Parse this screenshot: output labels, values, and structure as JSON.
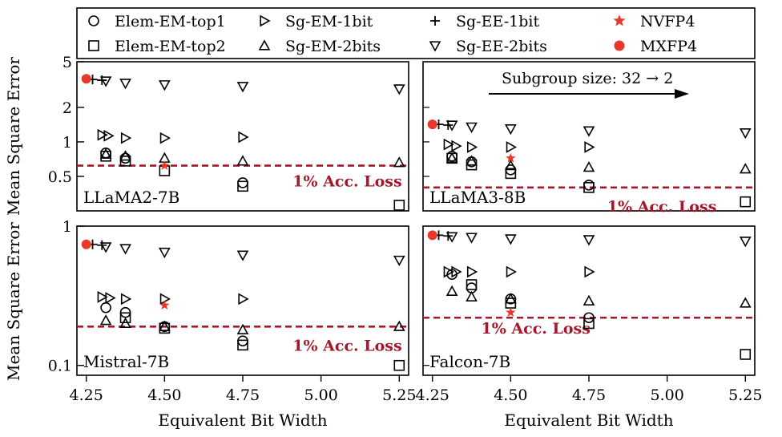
{
  "legend": [
    {
      "label": "Elem-EM-top1",
      "marker": "circle-open"
    },
    {
      "label": "Elem-EM-top2",
      "marker": "square-open"
    },
    {
      "label": "Sg-EM-1bit",
      "marker": "triangle-right-open"
    },
    {
      "label": "Sg-EM-2bits",
      "marker": "triangle-up-open"
    },
    {
      "label": "Sg-EE-1bit",
      "marker": "plus"
    },
    {
      "label": "Sg-EE-2bits",
      "marker": "triangle-down-open"
    },
    {
      "label": "NVFP4",
      "marker": "star-filled"
    },
    {
      "label": "MXFP4",
      "marker": "circle-filled"
    }
  ],
  "colors": {
    "accent_red": "#e8382a",
    "threshold_line": "#a3182a"
  },
  "axis_common": {
    "xlabel": "Equivalent Bit Width",
    "ylabel": "Mean Square Error",
    "xticks": [
      "4.25",
      "4.50",
      "4.75",
      "5.00",
      "5.25"
    ],
    "threshold_label": "1% Acc. Loss"
  },
  "annotation": {
    "subgroup_text": "Subgroup size: 32 → 2"
  },
  "chart_data": [
    {
      "type": "scatter",
      "title": "LLaMA2-7B",
      "yscale": "log",
      "xlim": [
        4.22,
        5.28
      ],
      "ylim": [
        0.25,
        5
      ],
      "yticks": [
        {
          "v": 0.5,
          "label": "0.5"
        },
        {
          "v": 1,
          "label": "1"
        },
        {
          "v": 2,
          "label": "2"
        },
        {
          "v": 5,
          "label": "5"
        }
      ],
      "threshold": 0.62,
      "series": [
        {
          "name": "Elem-EM-top1",
          "points": [
            [
              4.3125,
              0.8
            ],
            [
              4.375,
              0.72
            ],
            [
              4.75,
              0.44
            ]
          ]
        },
        {
          "name": "Elem-EM-top2",
          "points": [
            [
              4.3125,
              0.75
            ],
            [
              4.375,
              0.68
            ],
            [
              4.5,
              0.56
            ],
            [
              4.75,
              0.41
            ],
            [
              5.25,
              0.28
            ]
          ]
        },
        {
          "name": "Sg-EM-1bit",
          "points": [
            [
              4.3,
              1.15
            ],
            [
              4.32,
              1.13
            ],
            [
              4.375,
              1.08
            ],
            [
              4.5,
              1.08
            ],
            [
              4.75,
              1.1
            ]
          ]
        },
        {
          "name": "Sg-EM-2bits",
          "points": [
            [
              4.3125,
              0.78
            ],
            [
              4.375,
              0.75
            ],
            [
              4.5,
              0.72
            ],
            [
              4.75,
              0.68
            ],
            [
              5.25,
              0.66
            ]
          ]
        },
        {
          "name": "Sg-EE-1bit",
          "points": [
            [
              4.27,
              3.5
            ],
            [
              4.3,
              3.45
            ]
          ]
        },
        {
          "name": "Sg-EE-2bits",
          "points": [
            [
              4.3125,
              3.4
            ],
            [
              4.375,
              3.25
            ],
            [
              4.5,
              3.15
            ],
            [
              4.75,
              3.05
            ],
            [
              5.25,
              2.9
            ]
          ]
        },
        {
          "name": "NVFP4",
          "points": [
            [
              4.5,
              0.62
            ]
          ]
        },
        {
          "name": "MXFP4",
          "points": [
            [
              4.25,
              3.55
            ]
          ]
        }
      ]
    },
    {
      "type": "scatter",
      "title": "LLaMA3-8B",
      "yscale": "log",
      "xlim": [
        4.22,
        5.28
      ],
      "ylim": [
        0.25,
        5
      ],
      "yticks": [],
      "threshold": 0.4,
      "series": [
        {
          "name": "Elem-EM-top1",
          "points": [
            [
              4.3125,
              0.75
            ],
            [
              4.375,
              0.67
            ],
            [
              4.5,
              0.57
            ],
            [
              4.75,
              0.42
            ]
          ]
        },
        {
          "name": "Elem-EM-top2",
          "points": [
            [
              4.3125,
              0.72
            ],
            [
              4.375,
              0.63
            ],
            [
              4.5,
              0.53
            ],
            [
              4.75,
              0.4
            ],
            [
              5.25,
              0.3
            ]
          ]
        },
        {
          "name": "Sg-EM-1bit",
          "points": [
            [
              4.3,
              0.95
            ],
            [
              4.325,
              0.92
            ],
            [
              4.375,
              0.9
            ],
            [
              4.5,
              0.9
            ],
            [
              4.75,
              0.9
            ]
          ]
        },
        {
          "name": "Sg-EM-2bits",
          "points": [
            [
              4.3125,
              0.72
            ],
            [
              4.375,
              0.68
            ],
            [
              4.5,
              0.62
            ],
            [
              4.75,
              0.6
            ],
            [
              5.25,
              0.58
            ]
          ]
        },
        {
          "name": "Sg-EE-1bit",
          "points": [
            [
              4.27,
              1.42
            ],
            [
              4.3,
              1.4
            ]
          ]
        },
        {
          "name": "Sg-EE-2bits",
          "points": [
            [
              4.3125,
              1.4
            ],
            [
              4.375,
              1.35
            ],
            [
              4.5,
              1.3
            ],
            [
              4.75,
              1.25
            ],
            [
              5.25,
              1.2
            ]
          ]
        },
        {
          "name": "NVFP4",
          "points": [
            [
              4.5,
              0.72
            ]
          ]
        },
        {
          "name": "MXFP4",
          "points": [
            [
              4.25,
              1.42
            ]
          ]
        }
      ]
    },
    {
      "type": "scatter",
      "title": "Mistral-7B",
      "yscale": "log",
      "xlim": [
        4.22,
        5.28
      ],
      "ylim": [
        0.085,
        1
      ],
      "yticks": [
        {
          "v": 0.1,
          "label": "0.1"
        },
        {
          "v": 1,
          "label": "1"
        }
      ],
      "threshold": 0.19,
      "series": [
        {
          "name": "Elem-EM-top1",
          "points": [
            [
              4.3125,
              0.26
            ],
            [
              4.375,
              0.24
            ],
            [
              4.5,
              0.19
            ],
            [
              4.75,
              0.15
            ]
          ]
        },
        {
          "name": "Elem-EM-top2",
          "points": [
            [
              4.375,
              0.22
            ],
            [
              4.5,
              0.185
            ],
            [
              4.75,
              0.14
            ],
            [
              5.25,
              0.1
            ]
          ]
        },
        {
          "name": "Sg-EM-1bit",
          "points": [
            [
              4.3,
              0.31
            ],
            [
              4.325,
              0.305
            ],
            [
              4.375,
              0.3
            ],
            [
              4.5,
              0.3
            ],
            [
              4.75,
              0.3
            ]
          ]
        },
        {
          "name": "Sg-EM-2bits",
          "points": [
            [
              4.3125,
              0.21
            ],
            [
              4.375,
              0.2
            ],
            [
              4.5,
              0.19
            ],
            [
              4.75,
              0.18
            ],
            [
              5.25,
              0.19
            ]
          ]
        },
        {
          "name": "Sg-EE-1bit",
          "points": [
            [
              4.27,
              0.74
            ],
            [
              4.3,
              0.73
            ]
          ]
        },
        {
          "name": "Sg-EE-2bits",
          "points": [
            [
              4.3125,
              0.71
            ],
            [
              4.375,
              0.69
            ],
            [
              4.5,
              0.65
            ],
            [
              4.75,
              0.62
            ],
            [
              5.25,
              0.57
            ]
          ]
        },
        {
          "name": "NVFP4",
          "points": [
            [
              4.5,
              0.27
            ]
          ]
        },
        {
          "name": "MXFP4",
          "points": [
            [
              4.25,
              0.74
            ]
          ]
        }
      ]
    },
    {
      "type": "scatter",
      "title": "Falcon-7B",
      "yscale": "log",
      "xlim": [
        4.22,
        5.28
      ],
      "ylim": [
        0.085,
        1
      ],
      "yticks": [],
      "threshold": 0.22,
      "series": [
        {
          "name": "Elem-EM-top1",
          "points": [
            [
              4.3125,
              0.45
            ],
            [
              4.375,
              0.36
            ],
            [
              4.5,
              0.3
            ],
            [
              4.75,
              0.22
            ]
          ]
        },
        {
          "name": "Elem-EM-top2",
          "points": [
            [
              4.375,
              0.38
            ],
            [
              4.5,
              0.28
            ],
            [
              4.75,
              0.2
            ],
            [
              5.25,
              0.12
            ]
          ]
        },
        {
          "name": "Sg-EM-1bit",
          "points": [
            [
              4.3,
              0.47
            ],
            [
              4.325,
              0.47
            ],
            [
              4.375,
              0.47
            ],
            [
              4.5,
              0.47
            ],
            [
              4.75,
              0.47
            ]
          ]
        },
        {
          "name": "Sg-EM-2bits",
          "points": [
            [
              4.3125,
              0.34
            ],
            [
              4.375,
              0.31
            ],
            [
              4.5,
              0.3
            ],
            [
              4.75,
              0.29
            ],
            [
              5.25,
              0.28
            ]
          ]
        },
        {
          "name": "Sg-EE-1bit",
          "points": [
            [
              4.27,
              0.86
            ],
            [
              4.3,
              0.85
            ]
          ]
        },
        {
          "name": "Sg-EE-2bits",
          "points": [
            [
              4.3125,
              0.84
            ],
            [
              4.375,
              0.83
            ],
            [
              4.5,
              0.81
            ],
            [
              4.75,
              0.8
            ],
            [
              5.25,
              0.78
            ]
          ]
        },
        {
          "name": "NVFP4",
          "points": [
            [
              4.5,
              0.24
            ]
          ]
        },
        {
          "name": "MXFP4",
          "points": [
            [
              4.25,
              0.86
            ]
          ]
        }
      ]
    }
  ]
}
